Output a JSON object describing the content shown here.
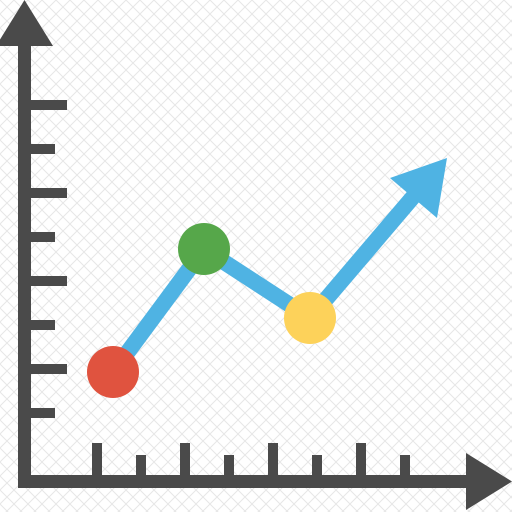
{
  "icon": {
    "name": "line-graph-icon",
    "colors": {
      "background": "#ffffff",
      "pattern": "#e6e6e6",
      "axes": "#4a4a4a",
      "line": "#4fb3e3",
      "point_1": "#e0533f",
      "point_2": "#56a74a",
      "point_3": "#fdd25a"
    },
    "y_ticks": 8,
    "x_ticks": 8
  }
}
